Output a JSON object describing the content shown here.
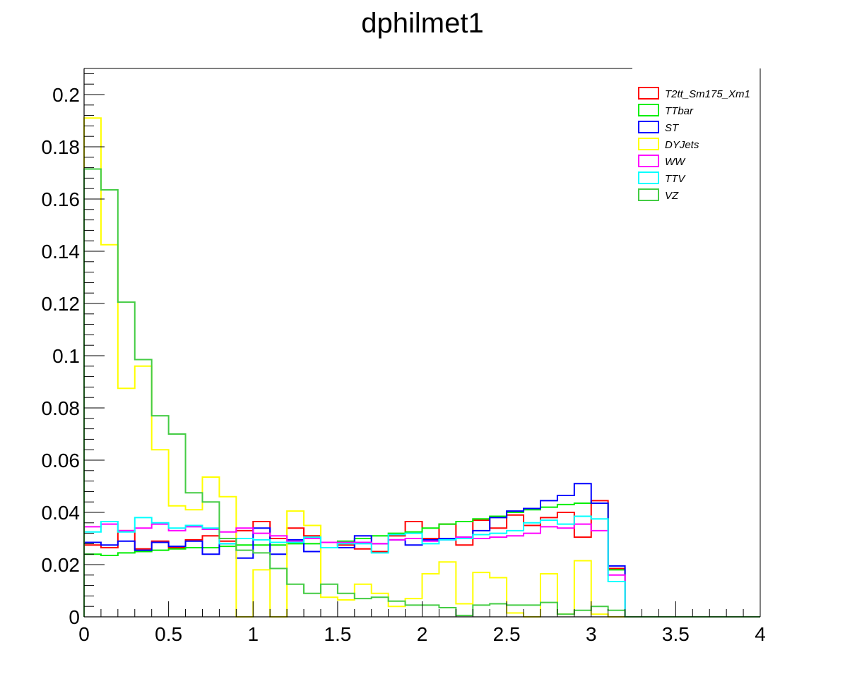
{
  "chart_data": {
    "type": "histogram",
    "title": "dphilmet1",
    "xlabel": "",
    "ylabel": "",
    "xlim": [
      0,
      4
    ],
    "ylim": [
      0,
      0.21
    ],
    "bin_edges_start": 0,
    "bin_width": 0.1,
    "x_ticks": [
      "0",
      "0.5",
      "1",
      "1.5",
      "2",
      "2.5",
      "3",
      "3.5",
      "4"
    ],
    "y_ticks": [
      "0",
      "0.02",
      "0.04",
      "0.06",
      "0.08",
      "0.1",
      "0.12",
      "0.14",
      "0.16",
      "0.18",
      "0.2"
    ],
    "legend_position": "top-right",
    "series": [
      {
        "name": "T2tt_Sm175_Xm1",
        "color": "#ff0000",
        "values": [
          0.0275,
          0.0265,
          0.033,
          0.026,
          0.029,
          0.0265,
          0.0295,
          0.031,
          0.029,
          0.033,
          0.0365,
          0.03,
          0.034,
          0.031,
          0.0285,
          0.0275,
          0.026,
          0.025,
          0.031,
          0.0365,
          0.03,
          0.0355,
          0.0275,
          0.037,
          0.034,
          0.039,
          0.035,
          0.038,
          0.04,
          0.0305,
          0.0445,
          0.0185,
          0,
          0,
          0,
          0,
          0,
          0,
          0,
          0
        ]
      },
      {
        "name": "TTbar",
        "color": "#00ee00",
        "values": [
          0.024,
          0.0235,
          0.0245,
          0.025,
          0.0255,
          0.026,
          0.0265,
          0.0265,
          0.027,
          0.0275,
          0.0275,
          0.0275,
          0.028,
          0.028,
          0.0285,
          0.029,
          0.03,
          0.031,
          0.032,
          0.0325,
          0.034,
          0.0355,
          0.0365,
          0.0375,
          0.0385,
          0.04,
          0.041,
          0.042,
          0.043,
          0.0435,
          0.0435,
          0.018,
          0,
          0,
          0,
          0,
          0,
          0,
          0,
          0
        ]
      },
      {
        "name": "ST",
        "color": "#0000ff",
        "values": [
          0.0285,
          0.0275,
          0.029,
          0.0255,
          0.0285,
          0.027,
          0.029,
          0.024,
          0.028,
          0.0225,
          0.034,
          0.024,
          0.0295,
          0.025,
          0.0285,
          0.0265,
          0.031,
          0.028,
          0.0295,
          0.0275,
          0.0295,
          0.03,
          0.0305,
          0.033,
          0.038,
          0.0405,
          0.0415,
          0.0445,
          0.0465,
          0.051,
          0.0435,
          0.0195,
          0,
          0,
          0,
          0,
          0,
          0,
          0,
          0
        ]
      },
      {
        "name": "DYJets",
        "color": "#ffff00",
        "values": [
          0.191,
          0.1425,
          0.0875,
          0.096,
          0.064,
          0.0425,
          0.041,
          0.0535,
          0.046,
          0,
          0.018,
          0,
          0.0405,
          0.035,
          0.0075,
          0.0065,
          0.0125,
          0.009,
          0.004,
          0.007,
          0.0165,
          0.021,
          0.005,
          0.017,
          0.015,
          0.0015,
          0,
          0.0165,
          0.001,
          0.0215,
          0.001,
          0,
          0,
          0,
          0,
          0,
          0,
          0,
          0,
          0
        ]
      },
      {
        "name": "WW",
        "color": "#ff00ff",
        "values": [
          0.0345,
          0.0355,
          0.033,
          0.034,
          0.0355,
          0.033,
          0.0345,
          0.0335,
          0.0325,
          0.034,
          0.032,
          0.031,
          0.029,
          0.03,
          0.0285,
          0.0285,
          0.0285,
          0.028,
          0.0295,
          0.03,
          0.029,
          0.0295,
          0.0305,
          0.03,
          0.0305,
          0.031,
          0.032,
          0.0345,
          0.034,
          0.0355,
          0.033,
          0.016,
          0,
          0,
          0,
          0,
          0,
          0,
          0,
          0
        ]
      },
      {
        "name": "TTV",
        "color": "#00ffff",
        "values": [
          0.0325,
          0.0365,
          0.0325,
          0.038,
          0.036,
          0.034,
          0.035,
          0.034,
          0.028,
          0.03,
          0.0295,
          0.0285,
          0.0285,
          0.0305,
          0.0265,
          0.028,
          0.028,
          0.0245,
          0.0315,
          0.032,
          0.028,
          0.0295,
          0.03,
          0.0315,
          0.032,
          0.033,
          0.036,
          0.037,
          0.0355,
          0.0385,
          0.0375,
          0.0135,
          0,
          0,
          0,
          0,
          0,
          0,
          0,
          0
        ]
      },
      {
        "name": "VZ",
        "color": "#44cc44",
        "values": [
          0.1715,
          0.1635,
          0.1205,
          0.0985,
          0.077,
          0.07,
          0.0475,
          0.044,
          0.03,
          0.0255,
          0.0245,
          0.0185,
          0.0125,
          0.009,
          0.0125,
          0.009,
          0.007,
          0.0075,
          0.006,
          0.0045,
          0.0045,
          0.0035,
          0.0005,
          0.0045,
          0.005,
          0.0045,
          0.0045,
          0.0055,
          0.001,
          0.0025,
          0.004,
          0.0025,
          0,
          0,
          0,
          0,
          0,
          0,
          0,
          0
        ]
      }
    ]
  }
}
